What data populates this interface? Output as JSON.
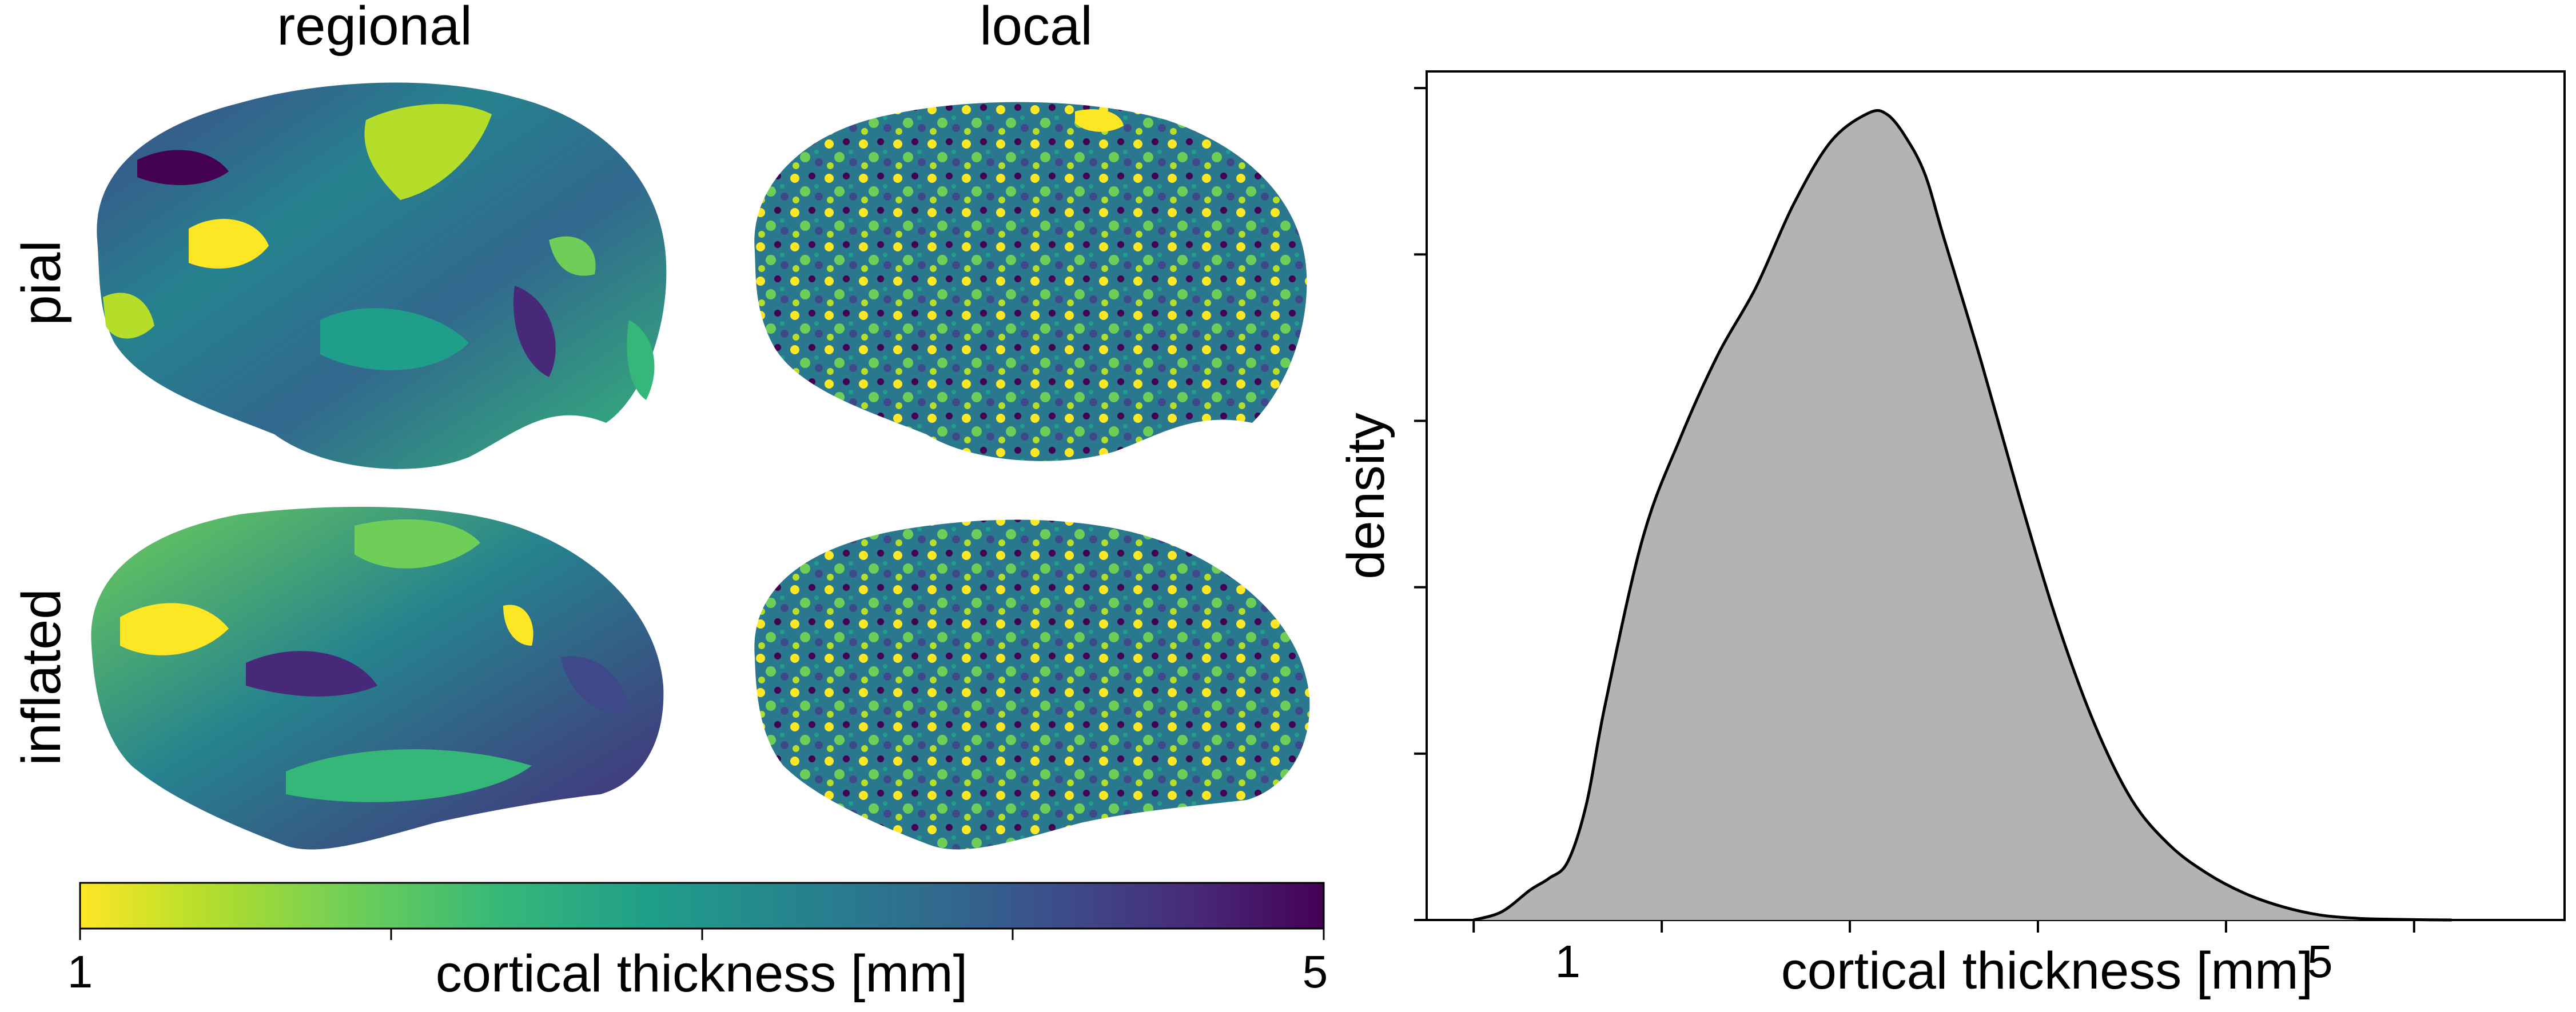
{
  "panels": {
    "columns": [
      "regional",
      "local"
    ],
    "rows": [
      "pial",
      "inflated"
    ]
  },
  "colorbar": {
    "label": "cortical thickness [mm]",
    "min_label": "1",
    "max_label": "5",
    "range": [
      1,
      5
    ],
    "colormap": "viridis (reversed: yellow = thin, purple = thick)",
    "colors": [
      "#fde725",
      "#b5de2b",
      "#6ece58",
      "#35b779",
      "#1f9e89",
      "#26828e",
      "#31688e",
      "#3e4989",
      "#482878",
      "#440154"
    ]
  },
  "chart_data": {
    "type": "area",
    "xlabel": "cortical thickness [mm]",
    "ylabel": "density",
    "x_tick_labels": [
      "1",
      "5"
    ],
    "xlim": [
      0.25,
      6.3
    ],
    "ylim": [
      0,
      0.51
    ],
    "fill_color": "#b3b3b3",
    "line_color": "#000000",
    "x": [
      0.5,
      0.65,
      0.8,
      0.9,
      1.0,
      1.1,
      1.2,
      1.4,
      1.6,
      1.8,
      2.0,
      2.2,
      2.4,
      2.6,
      2.7,
      2.8,
      2.9,
      3.0,
      3.2,
      3.4,
      3.6,
      3.8,
      4.0,
      4.2,
      4.4,
      4.6,
      4.8,
      5.0,
      5.2,
      5.35,
      5.5,
      5.7
    ],
    "y": [
      0.0,
      0.005,
      0.018,
      0.025,
      0.035,
      0.07,
      0.13,
      0.23,
      0.29,
      0.34,
      0.38,
      0.43,
      0.468,
      0.485,
      0.484,
      0.47,
      0.448,
      0.41,
      0.335,
      0.255,
      0.18,
      0.118,
      0.072,
      0.045,
      0.028,
      0.016,
      0.008,
      0.003,
      0.001,
      0.0005,
      0.0002,
      0.0
    ]
  }
}
